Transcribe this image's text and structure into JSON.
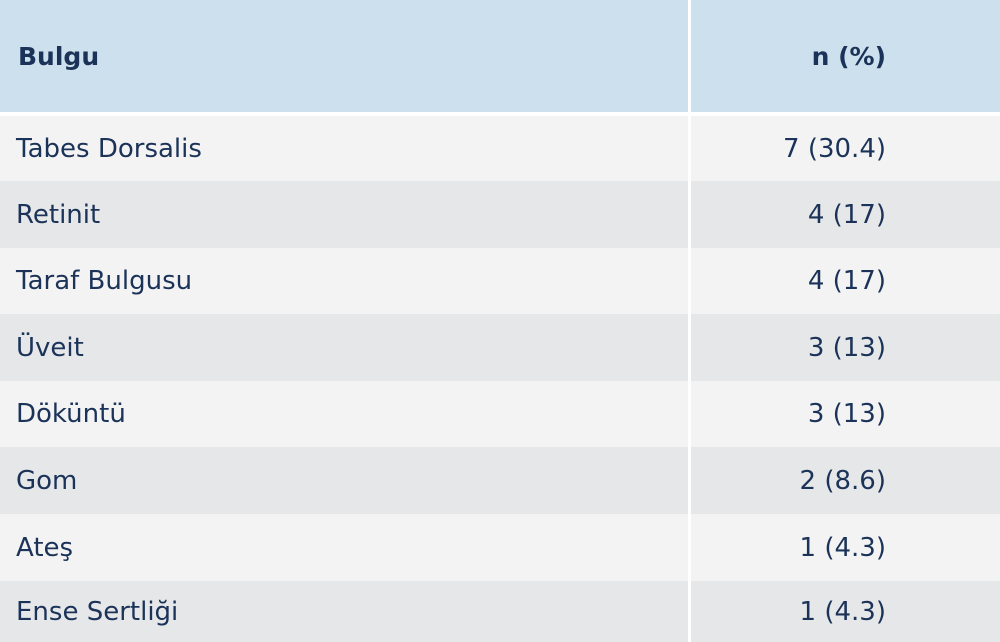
{
  "table": {
    "headers": [
      "Bulgu",
      "n (%)"
    ],
    "rows": [
      [
        "Tabes Dorsalis",
        "7 (30.4)"
      ],
      [
        "Retinit",
        "4 (17)"
      ],
      [
        "Taraf Bulgusu",
        "4 (17)"
      ],
      [
        "Üveit",
        "3 (13)"
      ],
      [
        "Döküntü",
        "3 (13)"
      ],
      [
        "Gom",
        "2 (8.6)"
      ],
      [
        "Ateş",
        "1 (4.3)"
      ],
      [
        "Ense Sertliği",
        "1 (4.3)"
      ]
    ]
  },
  "colors": {
    "header_bg": "#cde0ee",
    "row_light": "#f3f3f3",
    "row_dark": "#e6e7e8",
    "text": "#1b3358"
  }
}
